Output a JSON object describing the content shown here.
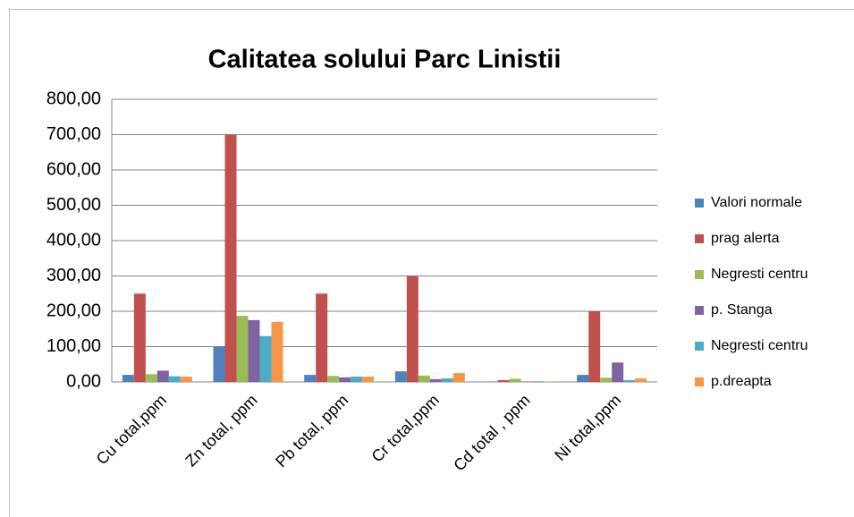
{
  "chart_data": {
    "type": "bar",
    "title": "Calitatea solului Parc Linistii",
    "categories": [
      "Cu total,ppm",
      "Zn total, ppm",
      "Pb total, ppm",
      "Cr total,ppm",
      "Cd total , ppm",
      "Ni total,ppm"
    ],
    "series": [
      {
        "name": "Valori normale",
        "color": "#4f81bd",
        "values": [
          20,
          100,
          20,
          30,
          1,
          20
        ]
      },
      {
        "name": "prag alerta",
        "color": "#c0504d",
        "values": [
          250,
          700,
          250,
          300,
          5,
          200
        ]
      },
      {
        "name": "Negresti centru",
        "color": "#9bbb59",
        "values": [
          22,
          187,
          17,
          18,
          9,
          12
        ]
      },
      {
        "name": "p. Stanga",
        "color": "#8064a2",
        "values": [
          32,
          175,
          13,
          8,
          1,
          55
        ]
      },
      {
        "name": "Negresti centru",
        "color": "#4bacc6",
        "values": [
          16,
          130,
          15,
          10,
          2,
          5
        ]
      },
      {
        "name": "p.dreapta",
        "color": "#f79646",
        "values": [
          15,
          170,
          15,
          25,
          1,
          10
        ]
      }
    ],
    "ylim": [
      0,
      800
    ],
    "yticks": [
      {
        "value": 0,
        "label": "0,00"
      },
      {
        "value": 100,
        "label": "100,00"
      },
      {
        "value": 200,
        "label": "200,00"
      },
      {
        "value": 300,
        "label": "300,00"
      },
      {
        "value": 400,
        "label": "400,00"
      },
      {
        "value": 500,
        "label": "500,00"
      },
      {
        "value": 600,
        "label": "600,00"
      },
      {
        "value": 700,
        "label": "700,00"
      },
      {
        "value": 800,
        "label": "800,00"
      }
    ],
    "grid": true,
    "legend": "right"
  }
}
